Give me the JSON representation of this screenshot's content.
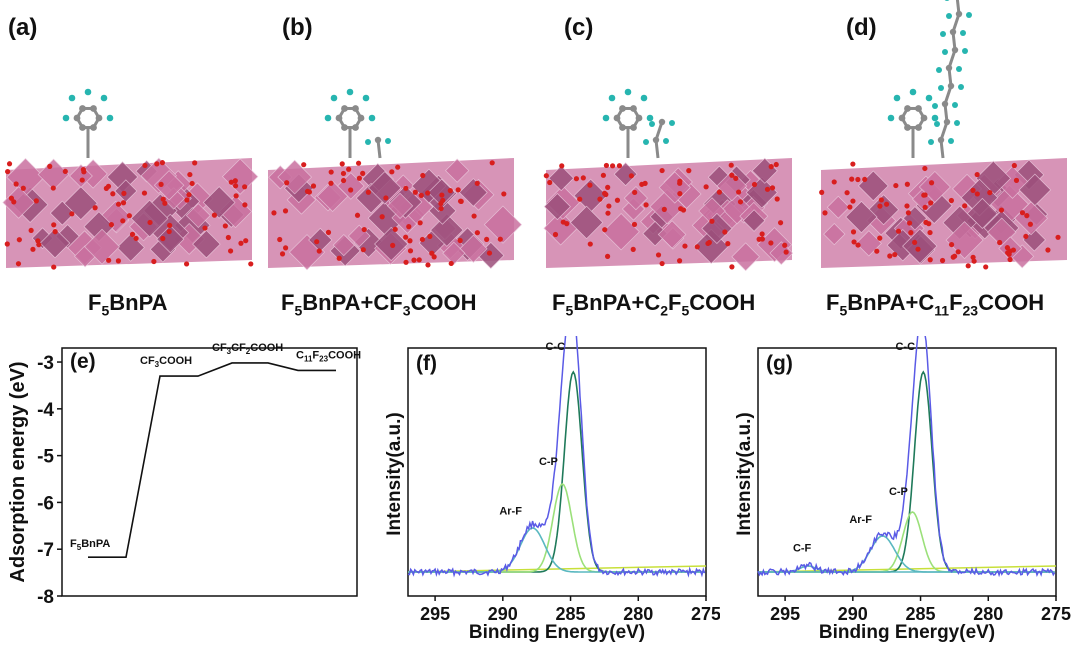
{
  "panels": {
    "a": {
      "letter": "(a)",
      "caption_parts": [
        "F",
        "5",
        "BnPA"
      ]
    },
    "b": {
      "letter": "(b)",
      "caption_parts": [
        "F",
        "5",
        "BnPA+CF",
        "3",
        "COOH"
      ]
    },
    "c": {
      "letter": "(c)",
      "caption_parts": [
        "F",
        "5",
        "BnPA+C",
        "2",
        "F",
        "5",
        "COOH"
      ]
    },
    "d": {
      "letter": "(d)",
      "caption_parts": [
        "F",
        "5",
        "BnPA+C",
        "11",
        "F",
        "23",
        "COOH"
      ]
    },
    "e": {
      "letter": "(e)"
    },
    "f": {
      "letter": "(f)"
    },
    "g": {
      "letter": "(g)"
    }
  },
  "colors": {
    "octahedra": "#c9709f",
    "octahedra_dark": "#9c4f7b",
    "oxygen": "#d81e1e",
    "carbon": "#8a8a8a",
    "fluorine": "#27b5b0",
    "raw_spectrum": "#5a5ae6",
    "fit_cc": "#1f7a5a",
    "fit_cp": "#9be07a",
    "fit_arf": "#5ab8c0",
    "baseline": "#c8e03a",
    "step_line": "#111111"
  },
  "chart_data": [
    {
      "panel": "e",
      "type": "line",
      "ylabel": "Adsorption energy (eV)",
      "xlabel": "",
      "ylim": [
        -8,
        -2.7
      ],
      "yticks": [
        -8,
        -7,
        -6,
        -5,
        -4,
        -3
      ],
      "ytick_labels": [
        "-8",
        "-7",
        "-6",
        "-5",
        "-4",
        "-3"
      ],
      "levels": [
        {
          "label_parts": [
            "F",
            "5",
            "BnPA"
          ],
          "value": -7.17
        },
        {
          "label_parts": [
            "CF",
            "3",
            "COOH"
          ],
          "value": -3.3
        },
        {
          "label_parts": [
            "CF",
            "3",
            "CF",
            "2",
            "COOH"
          ],
          "value": -3.02
        },
        {
          "label_parts": [
            "C",
            "11",
            "F",
            "23",
            "COOH"
          ],
          "value": -3.18
        }
      ]
    },
    {
      "panel": "f",
      "type": "line",
      "xlabel": "Binding Energy(eV)",
      "ylabel": "Intensity(a.u.)",
      "xlim": [
        297,
        275
      ],
      "xticks": [
        295,
        290,
        285,
        280,
        275
      ],
      "xtick_labels": [
        "295",
        "290",
        "285",
        "280",
        "275"
      ],
      "peaks": [
        {
          "label": "C-C",
          "center": 284.8,
          "height": 1.0
        },
        {
          "label": "C-P",
          "center": 285.6,
          "height": 0.44
        },
        {
          "label": "Ar-F",
          "center": 287.8,
          "height": 0.22
        }
      ]
    },
    {
      "panel": "g",
      "type": "line",
      "xlabel": "Binding Energy(eV)",
      "ylabel": "Intensity(a.u.)",
      "xlim": [
        297,
        275
      ],
      "xticks": [
        295,
        290,
        285,
        280,
        275
      ],
      "xtick_labels": [
        "295",
        "290",
        "285",
        "280",
        "275"
      ],
      "peaks": [
        {
          "label": "C-C",
          "center": 284.8,
          "height": 1.0
        },
        {
          "label": "C-P",
          "center": 285.6,
          "height": 0.3
        },
        {
          "label": "Ar-F",
          "center": 287.8,
          "height": 0.18
        },
        {
          "label": "C-F",
          "center": 293.3,
          "height": 0.03
        }
      ]
    }
  ]
}
